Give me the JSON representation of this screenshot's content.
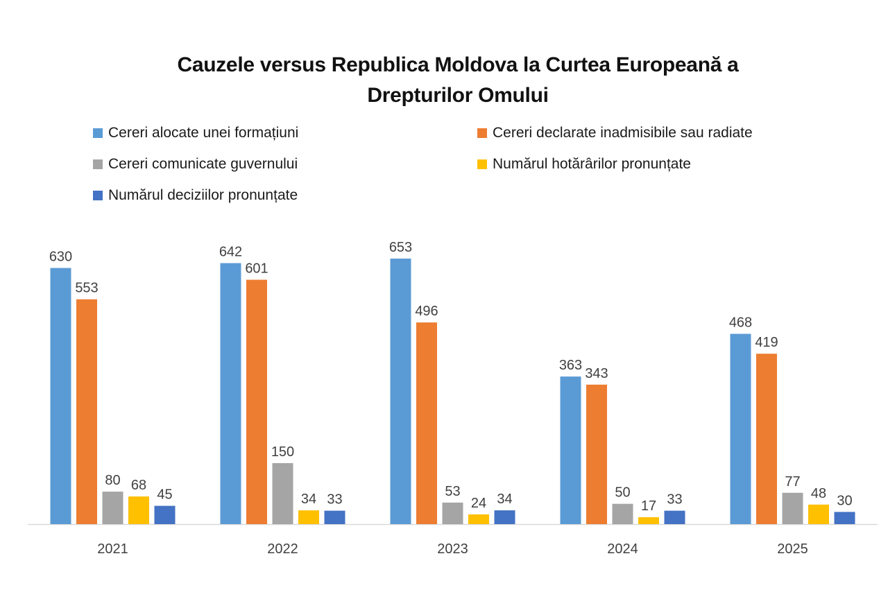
{
  "chart_data": {
    "type": "bar",
    "title": "Cauzele versus Republica Moldova la Curtea Europeană a Drepturilor Omului",
    "title_lines": [
      "Cauzele versus Republica Moldova la Curtea Europeană a",
      "Drepturilor Omului"
    ],
    "xlabel": "",
    "ylabel": "",
    "categories": [
      "2021",
      "2022",
      "2023",
      "2024",
      "2025"
    ],
    "series": [
      {
        "name": "Cereri alocate unei formațiuni",
        "color": "#5B9BD5",
        "values": [
          630,
          642,
          653,
          363,
          468
        ]
      },
      {
        "name": "Cereri declarate inadmisibile sau radiate",
        "color": "#ED7D31",
        "values": [
          553,
          601,
          496,
          343,
          419
        ]
      },
      {
        "name": "Cereri comunicate guvernului",
        "color": "#A5A5A5",
        "values": [
          80,
          150,
          53,
          50,
          77
        ]
      },
      {
        "name": "Numărul hotărârilor pronunțate",
        "color": "#FFC000",
        "values": [
          68,
          34,
          24,
          17,
          48
        ]
      },
      {
        "name": "Numărul deciziilor pronunțate",
        "color": "#4472C4",
        "values": [
          45,
          33,
          34,
          33,
          30
        ]
      }
    ],
    "ylim": [
      0,
      653
    ],
    "grid": false,
    "y_axis_visible": false,
    "data_labels": true,
    "legend_position": "top"
  }
}
